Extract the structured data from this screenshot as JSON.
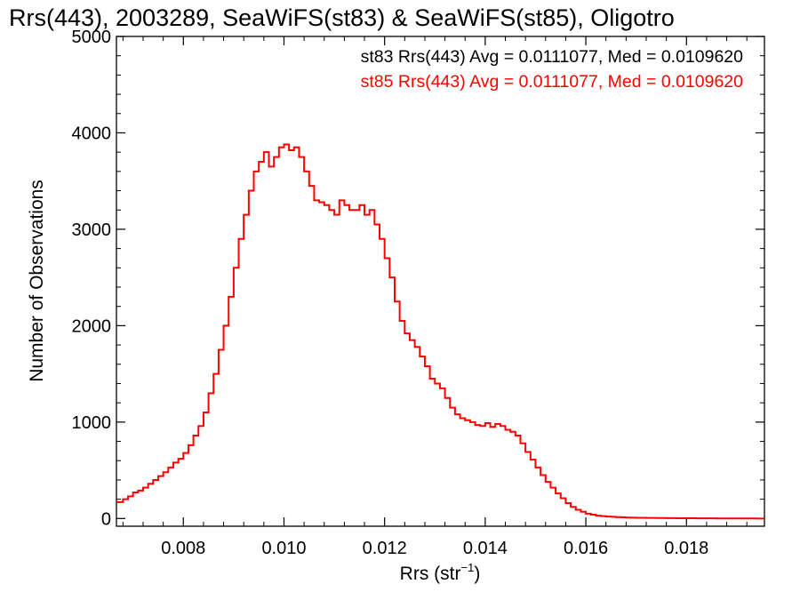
{
  "chart_data": {
    "type": "line",
    "title": "Rrs(443), 2003289, SeaWiFS(st83) & SeaWiFS(st85), Oligotro",
    "xlabel_main": "Rrs (str",
    "xlabel_sup": "−1",
    "xlabel_close": ")",
    "ylabel": "Number of Observations",
    "xlim": [
      0.00667,
      0.01955
    ],
    "ylim": [
      -80,
      5000
    ],
    "x_ticks": [
      {
        "value": 0.008,
        "label": "0.008"
      },
      {
        "value": 0.01,
        "label": "0.010"
      },
      {
        "value": 0.012,
        "label": "0.012"
      },
      {
        "value": 0.014,
        "label": "0.014"
      },
      {
        "value": 0.016,
        "label": "0.016"
      },
      {
        "value": 0.018,
        "label": "0.018"
      }
    ],
    "y_ticks": [
      {
        "value": 0,
        "label": "0"
      },
      {
        "value": 1000,
        "label": "1000"
      },
      {
        "value": 2000,
        "label": "2000"
      },
      {
        "value": 3000,
        "label": "3000"
      },
      {
        "value": 4000,
        "label": "4000"
      },
      {
        "value": 5000,
        "label": "5000"
      }
    ],
    "annotations": [
      {
        "text": "st83 Rrs(443) Avg = 0.0111077, Med = 0.0109620",
        "color": "#000000"
      },
      {
        "text": "st85 Rrs(443) Avg = 0.0111077, Med = 0.0109620",
        "color": "#ff0000"
      }
    ],
    "series": [
      {
        "color": "#ff0000",
        "style": "step",
        "x": [
          0.0067,
          0.0068,
          0.0069,
          0.007,
          0.0071,
          0.0072,
          0.0073,
          0.0074,
          0.0075,
          0.0076,
          0.0077,
          0.0078,
          0.0079,
          0.008,
          0.0081,
          0.0082,
          0.0083,
          0.0084,
          0.0085,
          0.0086,
          0.0087,
          0.0088,
          0.0089,
          0.009,
          0.0091,
          0.0092,
          0.0093,
          0.0094,
          0.0095,
          0.0096,
          0.0097,
          0.0098,
          0.0099,
          0.01,
          0.0101,
          0.0102,
          0.0103,
          0.0104,
          0.0105,
          0.0106,
          0.0107,
          0.0108,
          0.0109,
          0.011,
          0.0111,
          0.0112,
          0.0113,
          0.0114,
          0.0115,
          0.0116,
          0.0117,
          0.0118,
          0.0119,
          0.012,
          0.0121,
          0.0122,
          0.0123,
          0.0124,
          0.0125,
          0.0126,
          0.0127,
          0.0128,
          0.0129,
          0.013,
          0.0131,
          0.0132,
          0.0133,
          0.0134,
          0.0135,
          0.0136,
          0.0137,
          0.0138,
          0.0139,
          0.014,
          0.0141,
          0.0142,
          0.0143,
          0.0144,
          0.0145,
          0.0146,
          0.0147,
          0.0148,
          0.0149,
          0.015,
          0.0151,
          0.0152,
          0.0153,
          0.0154,
          0.0155,
          0.0156,
          0.0157,
          0.0158,
          0.0159,
          0.016,
          0.0161,
          0.0162,
          0.0163,
          0.0164,
          0.0165,
          0.0166,
          0.0167,
          0.0168,
          0.0169,
          0.017,
          0.0172,
          0.0174,
          0.0176,
          0.0178,
          0.018,
          0.0182,
          0.0184,
          0.0186,
          0.0188,
          0.019,
          0.0192,
          0.0194
        ],
        "y": [
          170,
          200,
          230,
          270,
          290,
          320,
          360,
          400,
          440,
          480,
          530,
          580,
          620,
          680,
          760,
          860,
          960,
          1100,
          1300,
          1500,
          1750,
          2000,
          2300,
          2600,
          2900,
          3150,
          3400,
          3600,
          3700,
          3800,
          3650,
          3750,
          3850,
          3880,
          3820,
          3850,
          3750,
          3600,
          3450,
          3300,
          3280,
          3250,
          3200,
          3150,
          3300,
          3250,
          3200,
          3200,
          3250,
          3150,
          3200,
          3050,
          2900,
          2700,
          2500,
          2250,
          2050,
          1920,
          1850,
          1780,
          1680,
          1580,
          1450,
          1400,
          1350,
          1250,
          1150,
          1080,
          1040,
          1020,
          1000,
          970,
          960,
          990,
          950,
          980,
          960,
          920,
          900,
          860,
          780,
          690,
          610,
          530,
          450,
          380,
          320,
          260,
          210,
          160,
          120,
          90,
          70,
          50,
          40,
          30,
          25,
          20,
          18,
          15,
          12,
          10,
          9,
          8,
          6,
          5,
          4,
          3,
          3,
          2,
          2,
          1,
          1,
          1,
          1,
          0
        ]
      }
    ]
  }
}
